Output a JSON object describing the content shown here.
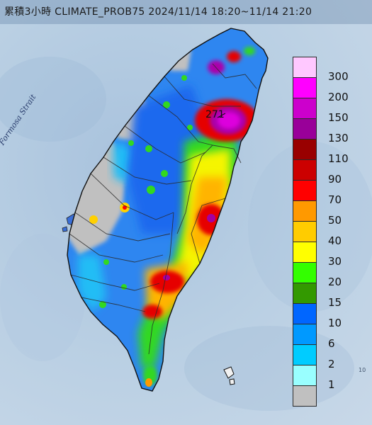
{
  "title": "累積3小時 CLIMATE_PROB75 2024/11/14 18:20~11/14 21:20",
  "strait_label": "Formosa Strait",
  "max_value_label": "271",
  "edge_label": "10",
  "legend": [
    {
      "label": "300",
      "color": "#ffc8ff"
    },
    {
      "label": "200",
      "color": "#ff00ff"
    },
    {
      "label": "150",
      "color": "#cc00cc"
    },
    {
      "label": "130",
      "color": "#990099"
    },
    {
      "label": "110",
      "color": "#990000"
    },
    {
      "label": "90",
      "color": "#cc0000"
    },
    {
      "label": "70",
      "color": "#ff0000"
    },
    {
      "label": "50",
      "color": "#ff9900"
    },
    {
      "label": "40",
      "color": "#ffcc00"
    },
    {
      "label": "30",
      "color": "#ffff00"
    },
    {
      "label": "20",
      "color": "#33ff00"
    },
    {
      "label": "15",
      "color": "#339900"
    },
    {
      "label": "10",
      "color": "#0066ff"
    },
    {
      "label": "6",
      "color": "#0099ff"
    },
    {
      "label": "2",
      "color": "#00ccff"
    },
    {
      "label": "1",
      "color": "#99ffff"
    },
    {
      "label": "",
      "color": "#c0c0c0"
    }
  ]
}
